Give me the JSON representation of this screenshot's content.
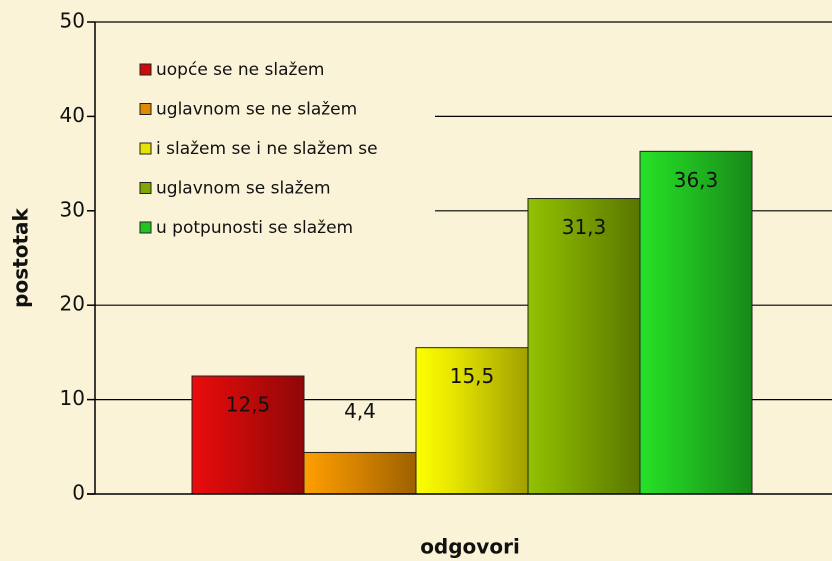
{
  "chart_data": {
    "type": "bar",
    "x_label": "odgovori",
    "y_label": "postotak",
    "ylim": [
      0,
      50
    ],
    "yticks": [
      0,
      10,
      20,
      30,
      40,
      50
    ],
    "grid": true,
    "legend": "top-left",
    "series": [
      {
        "name": "uopće se ne slažem",
        "color": "#cc0a0a",
        "values": [
          12.5
        ],
        "value_labels": [
          "12,5"
        ]
      },
      {
        "name": "uglavnom se ne slažem",
        "color": "#e08a00",
        "values": [
          4.4
        ],
        "value_labels": [
          "4,4"
        ]
      },
      {
        "name": "i slažem se i ne slažem se",
        "color": "#e4e400",
        "values": [
          15.5
        ],
        "value_labels": [
          "15,5"
        ]
      },
      {
        "name": "uglavnom se slažem",
        "color": "#7fa800",
        "values": [
          31.3
        ],
        "value_labels": [
          "31,3"
        ]
      },
      {
        "name": "u potpunosti se slažem",
        "color": "#22c422",
        "values": [
          36.3
        ],
        "value_labels": [
          "36,3"
        ]
      }
    ]
  }
}
